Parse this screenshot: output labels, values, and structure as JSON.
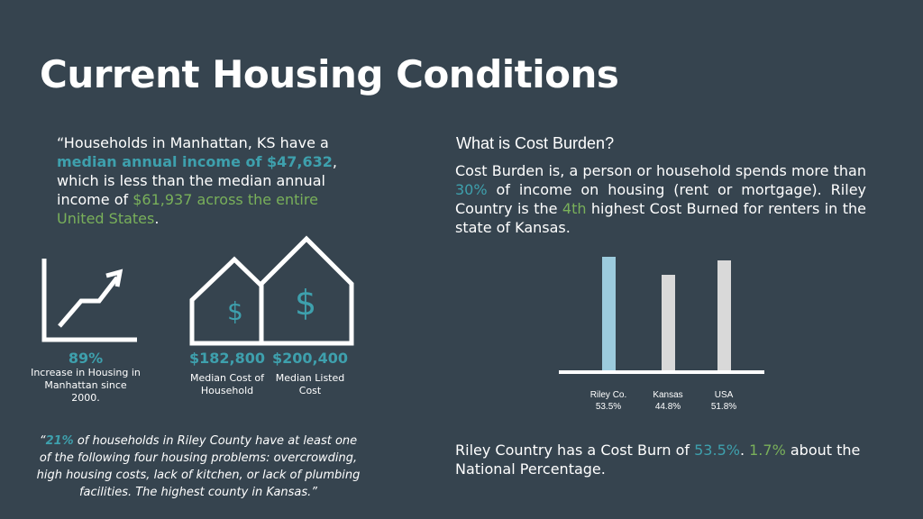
{
  "title": "Current Housing Conditions",
  "quote": {
    "p1": "“Households in Manhattan, KS have a ",
    "h1": "median annual income of $47,632",
    "p2": ", which is less than the median annual income of ",
    "h2": "$61,937 across the entire United States",
    "p3": "."
  },
  "stats": [
    {
      "value": "89%",
      "caption": "Increase in Housing in Manhattan since 2000."
    },
    {
      "value": "$182,800",
      "caption": "Median Cost of Household"
    },
    {
      "value": "$200,400",
      "caption": "Median Listed Cost"
    }
  ],
  "quote2": {
    "h": "21%",
    "rest": " of households in Riley County have at least one of the following four housing problems: overcrowding, high housing costs, lack of kitchen, or lack of plumbing facilities. The highest county in Kansas.”",
    "open": "“"
  },
  "cost_burden": {
    "title": "What is Cost Burden?",
    "t1": "Cost Burden is, a person or household spends more than ",
    "h1": "30%",
    "t2": " of income on housing (rent or mortgage). Riley Country is the ",
    "h2": "4th",
    "t3": " highest Cost Burned for renters in the state of Kansas."
  },
  "chart_data": {
    "type": "bar",
    "categories": [
      "Riley Co.",
      "Kansas",
      "USA"
    ],
    "values": [
      53.5,
      44.8,
      51.8
    ],
    "labels": [
      "53.5%",
      "44.8%",
      "51.8%"
    ],
    "colors": [
      "#9ccbdd",
      "#d9d9d9",
      "#d9d9d9"
    ]
  },
  "bottom": {
    "t1": "Riley Country has a Cost Burn of ",
    "h1": "53.5%",
    "t2": ". ",
    "h2": "1.7%",
    "t3": " about the National Percentage."
  }
}
